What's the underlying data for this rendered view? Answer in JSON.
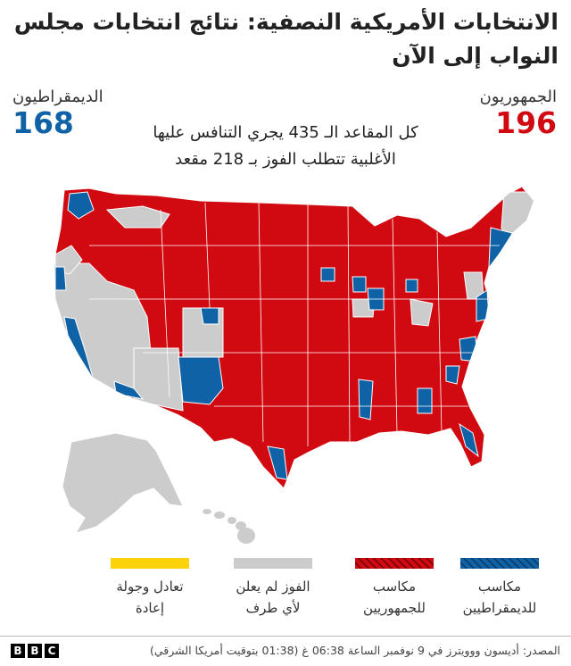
{
  "title": "الانتخابات الأمريكية النصفية: نتائج انتخابات مجلس النواب إلى الآن",
  "republicans": {
    "label": "الجمهوريون",
    "seats": "196",
    "color": "#d10a11"
  },
  "democrats": {
    "label": "الديمقراطيون",
    "seats": "168",
    "color": "#1062a6"
  },
  "note": {
    "line1": "كل المقاعد الـ 435 يجري التنافس عليها",
    "line2": "الأغلبية تتطلب الفوز بـ 218 مقعد"
  },
  "legend": [
    {
      "id": "dem-gains",
      "line1": "مكاسب",
      "line2": "للديمقراطيين",
      "color": "#1062a6",
      "pattern": "hatched"
    },
    {
      "id": "rep-gains",
      "line1": "مكاسب",
      "line2": "للجمهوريين",
      "color": "#d10a11",
      "pattern": "hatched"
    },
    {
      "id": "not-called",
      "line1": "الفوز لم يعلن",
      "line2": "لأي طرف",
      "color": "#cccccc",
      "pattern": "solid"
    },
    {
      "id": "tie-runoff",
      "line1": "تعادل وجولة",
      "line2": "إعادة",
      "color": "#fdd20a",
      "pattern": "solid"
    }
  ],
  "source": "المصدر: أديسون ووويترز في 9 نوفمبر الساعة 06:38 غ (01:38 بتوقيت أمريكا الشرقي)",
  "brand": [
    "B",
    "B",
    "C"
  ],
  "map_colors": {
    "rep": "#d10a11",
    "dem": "#1062a6",
    "none": "#cccccc",
    "border": "#ffffff"
  }
}
